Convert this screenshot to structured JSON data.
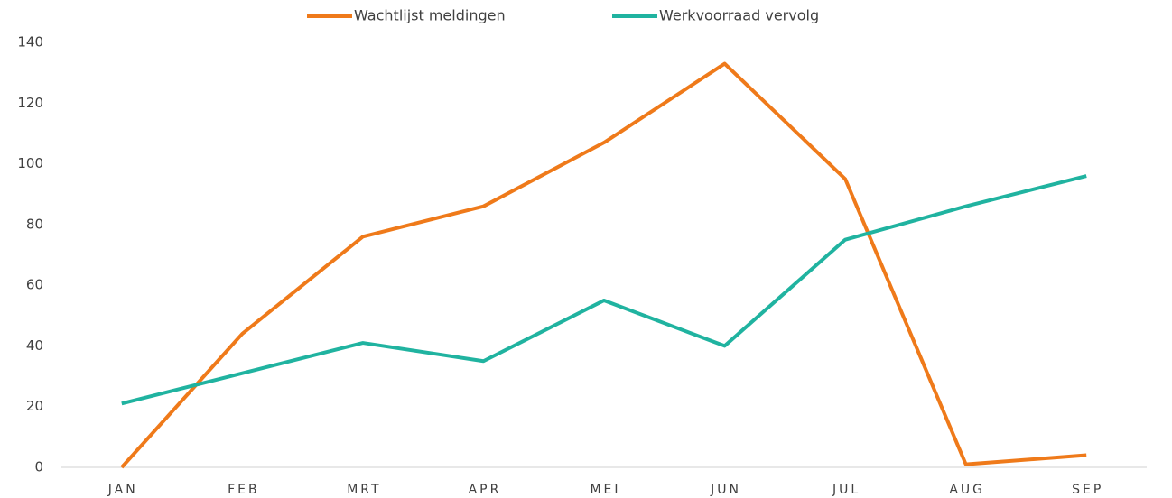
{
  "chart_data": {
    "type": "line",
    "categories": [
      "JAN",
      "FEB",
      "MRT",
      "APR",
      "MEI",
      "JUN",
      "JUL",
      "AUG",
      "SEP"
    ],
    "series": [
      {
        "name": "Wachtlijst meldingen",
        "color": "#ef7a1a",
        "values": [
          0,
          44,
          76,
          86,
          107,
          133,
          95,
          1,
          4
        ]
      },
      {
        "name": "Werkvoorraad vervolg",
        "color": "#20b3a0",
        "values": [
          21,
          31,
          41,
          35,
          55,
          40,
          75,
          86,
          96
        ]
      }
    ],
    "ylim": [
      0,
      140
    ],
    "yticks": [
      0,
      20,
      40,
      60,
      80,
      100,
      120,
      140
    ],
    "grid": false,
    "legend": "top"
  }
}
